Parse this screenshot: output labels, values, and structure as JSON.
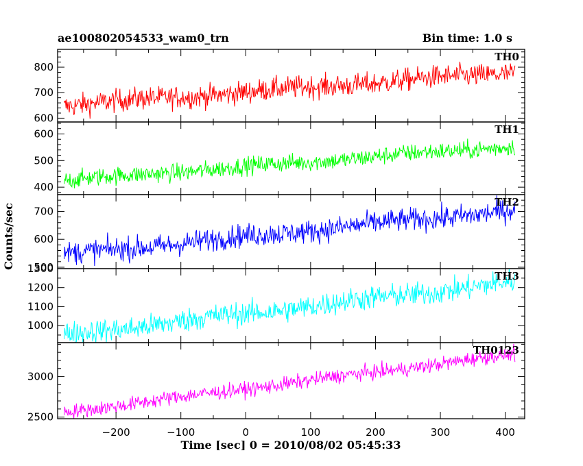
{
  "header": {
    "left_title": "ae100802054533_wam0_trn",
    "right_title": "Bin time: 1.0 s"
  },
  "chart_data": {
    "type": "line",
    "x_range": [
      -290,
      430
    ],
    "xlabel": "Time [sec] 0 = 2010/08/02 05:45:33",
    "ylabel": "Counts/sec",
    "x_ticks": [
      -200,
      -100,
      0,
      100,
      200,
      300,
      400
    ],
    "x_tick_labels": [
      "−200",
      "−100",
      "0",
      "100",
      "200",
      "300",
      "400"
    ],
    "data_x_range": [
      -280,
      415
    ],
    "bin_time_s": 1.0,
    "grid": false,
    "legend": "none",
    "panels": [
      {
        "name": "TH0",
        "color": "#ff0000",
        "ylim": [
          585,
          870
        ],
        "ticks": [
          600,
          700,
          800
        ],
        "tick_labels": [
          "600",
          "700",
          "800"
        ],
        "trend_start": 650,
        "trend_end": 780,
        "noise": 32
      },
      {
        "name": "TH1",
        "color": "#00ff00",
        "ylim": [
          372,
          645
        ],
        "ticks": [
          400,
          500,
          600
        ],
        "tick_labels": [
          "400",
          "500",
          "600"
        ],
        "trend_start": 425,
        "trend_end": 555,
        "noise": 24
      },
      {
        "name": "TH2",
        "color": "#0000ff",
        "ylim": [
          495,
          760
        ],
        "ticks": [
          500,
          600,
          700
        ],
        "tick_labels": [
          "500",
          "600",
          "700"
        ],
        "trend_start": 545,
        "trend_end": 705,
        "noise": 30
      },
      {
        "name": "TH3",
        "color": "#00ffff",
        "ylim": [
          910,
          1300
        ],
        "ticks": [
          1000,
          1100,
          1200,
          1300
        ],
        "tick_labels": [
          "1000",
          "1100",
          "1200",
          "1300"
        ],
        "trend_start": 950,
        "trend_end": 1230,
        "noise": 45
      },
      {
        "name": "TH0123",
        "color": "#ff00ff",
        "ylim": [
          2480,
          3420
        ],
        "ticks": [
          2500,
          3000
        ],
        "tick_labels": [
          "2500",
          "3000"
        ],
        "trend_start": 2560,
        "trend_end": 3280,
        "noise": 65
      }
    ]
  }
}
